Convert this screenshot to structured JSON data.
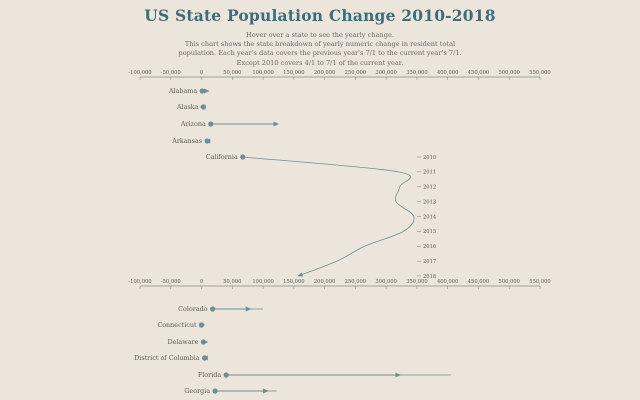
{
  "page": {
    "title": "US State Population Change 2010-2018",
    "subtitle_lines": [
      "Hover over a state to see the yearly change.",
      "This chart shows the state breakdown of yearly numeric change in resident total",
      "population. Each year's data covers the previous year's 7/1 to the current year's 7/1.",
      "Except 2010 covers 4/1 to 7/1 of the current year."
    ]
  },
  "colors": {
    "background": "#ebe5dc",
    "title": "#3f6e7a",
    "mark": "#6f8e93",
    "axis": "#8a8a86",
    "text": "#5b5b58"
  },
  "chart_data": {
    "type": "line",
    "xlim": [
      -100000,
      550000
    ],
    "x_ticks": [
      -100000,
      -50000,
      0,
      50000,
      100000,
      150000,
      200000,
      250000,
      300000,
      350000,
      400000,
      450000,
      500000,
      550000
    ],
    "x_tick_labels": [
      "-100,000",
      "-50,000",
      "0",
      "50,000",
      "100,000",
      "150,000",
      "200,000",
      "250,000",
      "300,000",
      "350,000",
      "400,000",
      "450,000",
      "500,000",
      "550,000"
    ],
    "years": [
      "2010",
      "2011",
      "2012",
      "2013",
      "2014",
      "2015",
      "2016",
      "2017",
      "2018"
    ],
    "states": [
      {
        "name": "Alabama",
        "start": 1000,
        "end": 12000
      },
      {
        "name": "Alaska",
        "start": 3000,
        "end": -2000
      },
      {
        "name": "Arizona",
        "start": 15000,
        "end": 125000
      },
      {
        "name": "Arkansas",
        "start": 9000,
        "end": 6000
      },
      {
        "name": "California",
        "highlighted": true,
        "yearly": [
          {
            "year": "2010",
            "value": 67000
          },
          {
            "year": "2011",
            "value": 320000
          },
          {
            "year": "2012",
            "value": 322000
          },
          {
            "year": "2013",
            "value": 316000
          },
          {
            "year": "2014",
            "value": 345000
          },
          {
            "year": "2015",
            "value": 328000
          },
          {
            "year": "2016",
            "value": 265000
          },
          {
            "year": "2017",
            "value": 220000
          },
          {
            "year": "2018",
            "value": 157000
          }
        ]
      },
      {
        "name": "Colorado",
        "start": 18000,
        "end": 80000,
        "range_end": 100000
      },
      {
        "name": "Connecticut",
        "start": 0,
        "end": 5000
      },
      {
        "name": "Delaware",
        "start": 3000,
        "end": 10000
      },
      {
        "name": "District of Columbia",
        "start": 5000,
        "end": 2000
      },
      {
        "name": "Florida",
        "start": 40000,
        "end": 323000,
        "range_end": 405000
      },
      {
        "name": "Georgia",
        "start": 22000,
        "end": 108000,
        "range_end": 122000
      }
    ]
  }
}
